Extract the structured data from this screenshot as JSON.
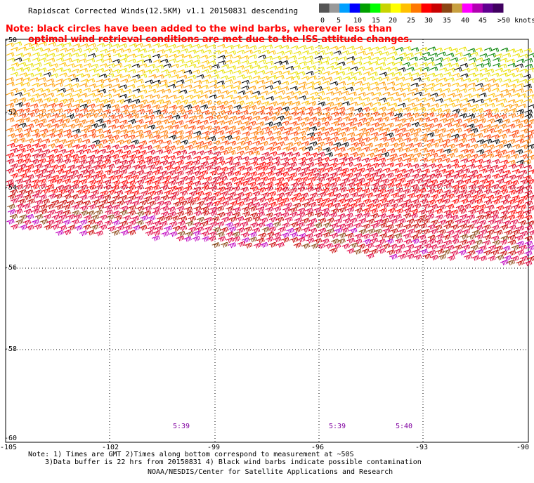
{
  "title": "Rapidscat Corrected Winds(12.5KM) v1.1 20150831 descending",
  "note_line1": "Note: black circles have been added to the wind barbs, wherever less than",
  "note_line2": "optimal wind retrieval conditions are met due to the ISS attitude changes.",
  "legend": {
    "labels": [
      "0",
      "5",
      "10",
      "15",
      "20",
      "25",
      "30",
      "35",
      "40",
      "45",
      ">50 knots"
    ],
    "colors": [
      "#555555",
      "#999999",
      "#00a0ff",
      "#0000ff",
      "#00a000",
      "#00ff00",
      "#c8d400",
      "#ffff00",
      "#ffc000",
      "#ff7800",
      "#ff0000",
      "#c80000",
      "#8b4513",
      "#c8a040",
      "#ff00ff",
      "#b000b0",
      "#600090",
      "#400060"
    ]
  },
  "axes": {
    "lat_labels": [
      "-50",
      "-52",
      "-54",
      "-56",
      "-58",
      "-60"
    ],
    "lon_labels": [
      "-105",
      "-102",
      "-99",
      "-96",
      "-93",
      "-90"
    ]
  },
  "times": [
    {
      "text": "5:39",
      "color": "#8000a0"
    },
    {
      "text": "5:39",
      "color": "#8000a0"
    },
    {
      "text": "5:40",
      "color": "#8000a0"
    }
  ],
  "footer": {
    "line1": "Note: 1) Times are GMT 2)Times along bottom correspond to measurement at ~50S",
    "line2": "3)Data buffer is 22 hrs from 20150831 4) Black wind barbs indicate possible contamination",
    "line3": "NOAA/NESDIS/Center for Satellite Applications and Research"
  }
}
